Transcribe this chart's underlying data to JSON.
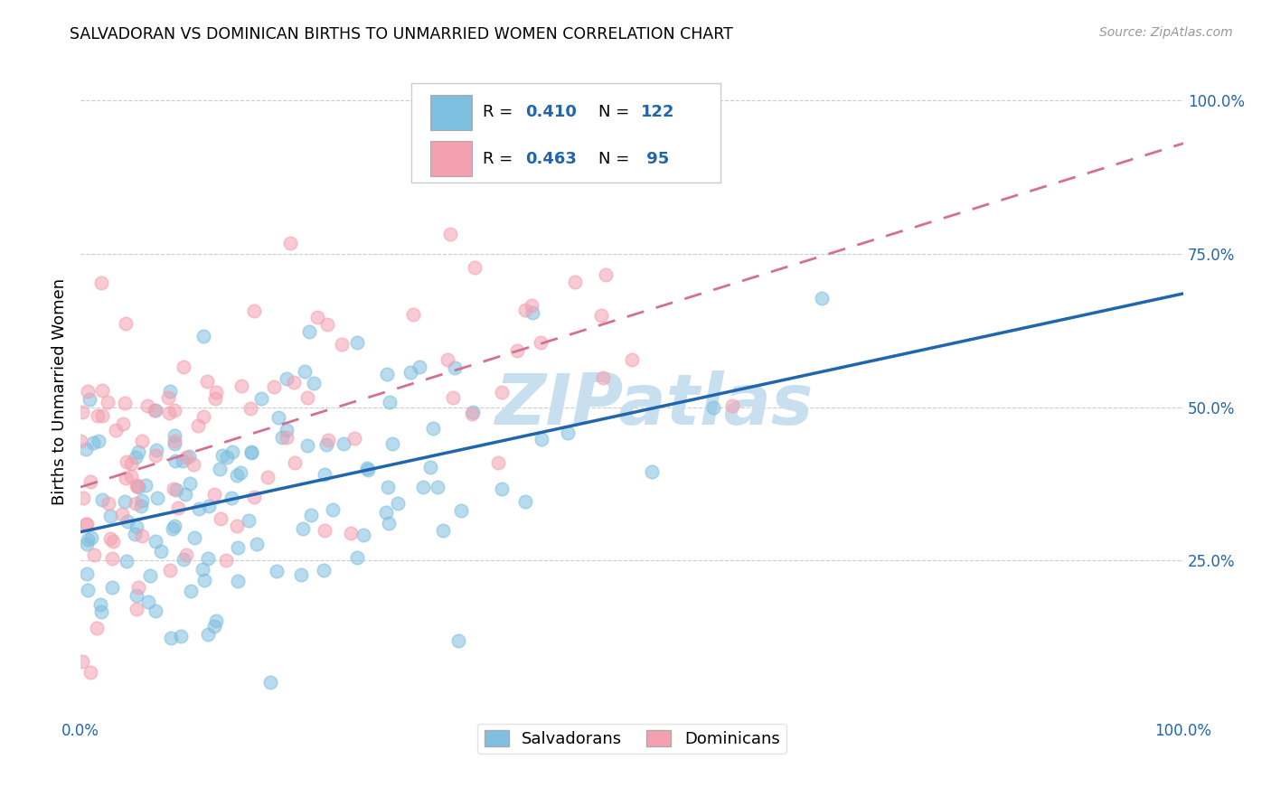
{
  "title": "SALVADORAN VS DOMINICAN BIRTHS TO UNMARRIED WOMEN CORRELATION CHART",
  "source": "Source: ZipAtlas.com",
  "ylabel": "Births to Unmarried Women",
  "salvadoran_R": 0.41,
  "salvadoran_N": 122,
  "dominican_R": 0.463,
  "dominican_N": 95,
  "salv_color": "#7fbfdf",
  "dom_color": "#f4a0b0",
  "salv_line_color": "#2166ac",
  "dom_line_color": "#d47090",
  "watermark_color": "#c8dff0",
  "salv_seed": 7,
  "dom_seed": 13,
  "xlim": [
    0.0,
    1.0
  ],
  "ylim": [
    0.0,
    1.05
  ],
  "right_ytick_positions": [
    0.25,
    0.5,
    0.75,
    1.0
  ],
  "right_ytick_labels": [
    "25.0%",
    "50.0%",
    "75.0%",
    "100.0%"
  ]
}
